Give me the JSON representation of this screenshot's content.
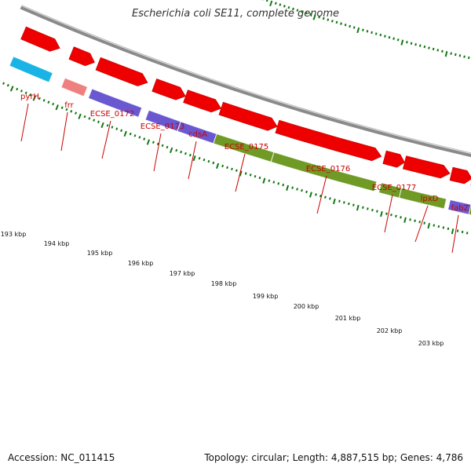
{
  "title": "Escherichia coli SE11, complete genome",
  "footer": {
    "accession": "Accession: NC_011415",
    "summary": "Topology: circular; Length: 4,887,515 bp; Genes: 4,786"
  },
  "colors": {
    "background": "#ffffff",
    "backbone": "#8a8a8a",
    "cds_arrow": "#ee0000",
    "gene_label": "#cc0000",
    "tick": "#117711",
    "feature_cyan": "#19b3e6",
    "feature_pink": "#ef8080",
    "feature_purple": "#6a58d0",
    "feature_olive": "#6f9a25"
  },
  "scale_labels": [
    "193 kbp",
    "194 kbp",
    "195 kbp",
    "196 kbp",
    "197 kbp",
    "198 kbp",
    "199 kbp",
    "200 kbp",
    "201 kbp",
    "202 kbp",
    "203 kbp"
  ],
  "gene_labels": [
    "pyrH",
    "frr",
    "ECSE_0172",
    "ECSE_0173",
    "cdsA",
    "ECSE_0175",
    "ECSE_0176",
    "ECSE_0177",
    "lpxD",
    "fabZ"
  ],
  "feature_colors": [
    "cyan",
    "pink",
    "purple",
    "purple",
    "purple",
    "olive",
    "olive",
    "olive",
    "olive",
    "purple",
    "olive"
  ]
}
